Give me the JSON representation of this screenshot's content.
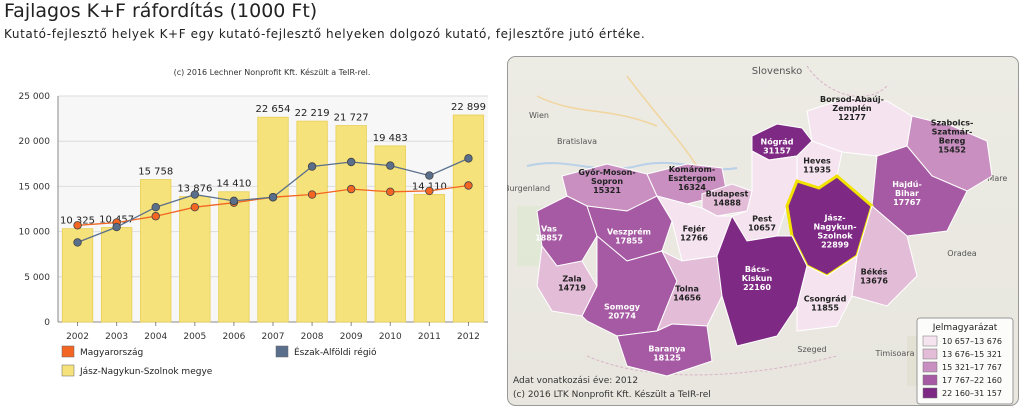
{
  "page": {
    "title": "Fajlagos K+F ráfordítás (1000 Ft)",
    "subtitle": "Kutató-fejlesztő helyek K+F egy kutató-fejlesztő helyeken dolgozó kutató, fejlesztőre jutó értéke."
  },
  "chart_data": {
    "type": "bar",
    "credit": "(c) 2016 Lechner Nonprofit Kft. Készült a TeIR-rel.",
    "categories": [
      "2002",
      "2003",
      "2004",
      "2005",
      "2006",
      "2007",
      "2008",
      "2009",
      "2010",
      "2011",
      "2012"
    ],
    "ylim": [
      0,
      25000
    ],
    "yticks": [
      0,
      5000,
      10000,
      15000,
      20000,
      25000
    ],
    "ytick_labels": [
      "0",
      "5 000",
      "10 000",
      "15 000",
      "20 000",
      "25 000"
    ],
    "grid": true,
    "legend_position": "bottom",
    "series": [
      {
        "name": "Magyarország",
        "type": "line",
        "color": "#f26522",
        "values": [
          10700,
          11000,
          11700,
          12700,
          13200,
          13800,
          14100,
          14700,
          14400,
          14500,
          15100
        ]
      },
      {
        "name": "Észak-Alföldi régió",
        "type": "line",
        "color": "#5a6f8c",
        "values": [
          8800,
          10500,
          12700,
          14100,
          13400,
          13800,
          17200,
          17700,
          17300,
          16200,
          18100
        ]
      },
      {
        "name": "Jász-Nagykun-Szolnok megye",
        "type": "bar",
        "color": "#f6e27a",
        "values": [
          10325,
          10457,
          15758,
          13876,
          14410,
          22654,
          22219,
          21727,
          19483,
          14110,
          22899
        ],
        "labels": [
          "10 325",
          "10 457",
          "15 758",
          "13 876",
          "14 410",
          "22 654",
          "22 219",
          "21 727",
          "19 483",
          "14 110",
          "22 899"
        ]
      }
    ]
  },
  "map": {
    "footer_year": "Adat vonatkozási éve: 2012",
    "credit": "(c) 2016 LTK Nonprofit Kft. Készült a TeIR-rel",
    "legend_title": "Jelmagyarázat",
    "legend": [
      {
        "label": "10 657–13 676",
        "color": "#f5e4ef"
      },
      {
        "label": "13 676–15 321",
        "color": "#e3bcd8"
      },
      {
        "label": "15 321–17 767",
        "color": "#c88fc0"
      },
      {
        "label": "17 767–22 160",
        "color": "#a65aa3"
      },
      {
        "label": "22 160–31 157",
        "color": "#7e2a84"
      }
    ],
    "counties": [
      {
        "name": "Borsod-Abaúj-Zemplén",
        "value": "12177"
      },
      {
        "name": "Nógrád",
        "value": "31157"
      },
      {
        "name": "Heves",
        "value": "11935"
      },
      {
        "name": "Szabolcs-Szatmár-Bereg",
        "value": "15452"
      },
      {
        "name": "Hajdú-Bihar",
        "value": "17767"
      },
      {
        "name": "Győr-Moson-Sopron",
        "value": "15321"
      },
      {
        "name": "Komárom-Esztergom",
        "value": "16324"
      },
      {
        "name": "Budapest",
        "value": "14888"
      },
      {
        "name": "Pest",
        "value": "10657"
      },
      {
        "name": "Jász-Nagykun-Szolnok",
        "value": "22899"
      },
      {
        "name": "Vas",
        "value": "18857"
      },
      {
        "name": "Veszprém",
        "value": "17855"
      },
      {
        "name": "Fejér",
        "value": "12766"
      },
      {
        "name": "Békés",
        "value": "13676"
      },
      {
        "name": "Zala",
        "value": "14719"
      },
      {
        "name": "Somogy",
        "value": "20774"
      },
      {
        "name": "Tolna",
        "value": "14656"
      },
      {
        "name": "Bács-Kiskun",
        "value": "22160"
      },
      {
        "name": "Csongrád",
        "value": "11855"
      },
      {
        "name": "Baranya",
        "value": "18125"
      }
    ],
    "places": [
      "Slovensko",
      "Wien",
      "Bratislava",
      "Burgenland",
      "Szeged",
      "Timisoara",
      "Satu Mare",
      "Oradea"
    ]
  }
}
